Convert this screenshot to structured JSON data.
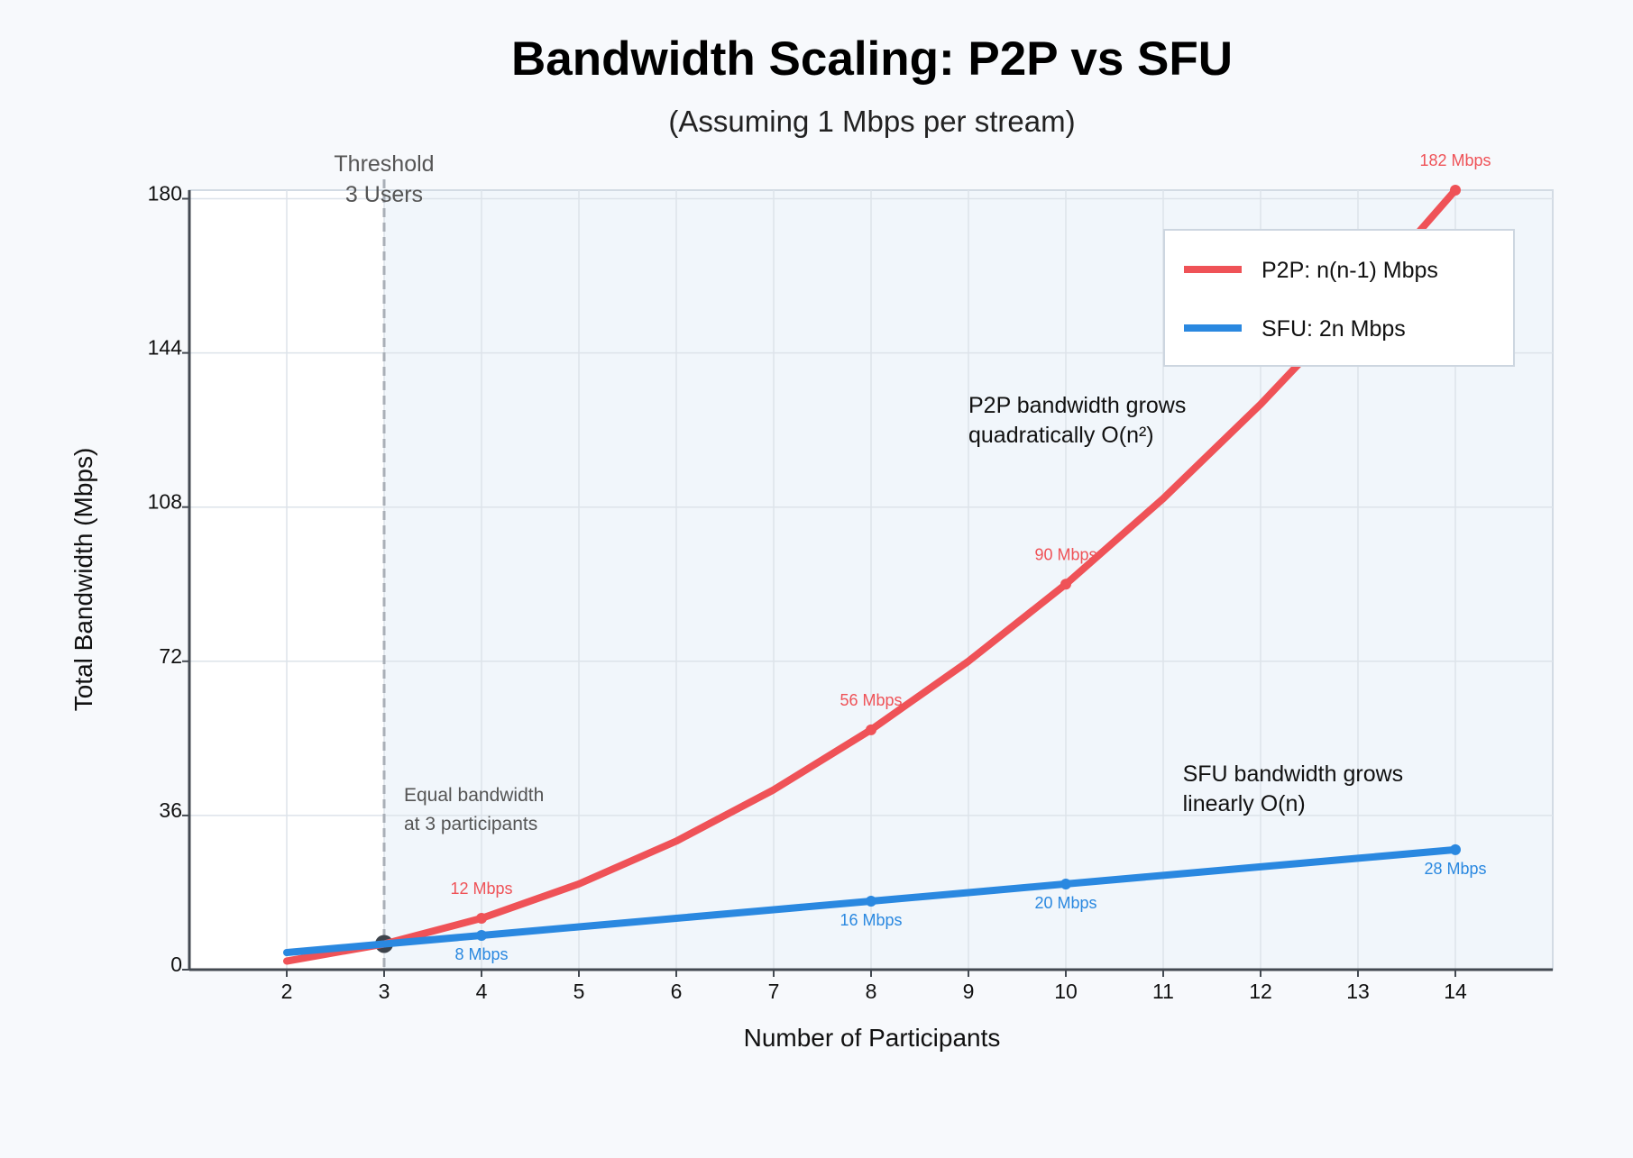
{
  "chart_data": {
    "type": "line",
    "title": "Bandwidth Scaling: P2P vs SFU",
    "subtitle": "(Assuming 1 Mbps per stream)",
    "xlabel": "Number of Participants",
    "ylabel": "Total Bandwidth (Mbps)",
    "xlim": [
      1,
      15
    ],
    "ylim": [
      0,
      182
    ],
    "x_ticks": [
      2,
      3,
      4,
      5,
      6,
      7,
      8,
      9,
      10,
      11,
      12,
      13,
      14
    ],
    "y_ticks": [
      0,
      36,
      72,
      108,
      144,
      180
    ],
    "grid": true,
    "legend_position": "top-right",
    "x": [
      2,
      3,
      4,
      5,
      6,
      7,
      8,
      9,
      10,
      11,
      12,
      13,
      14
    ],
    "series": [
      {
        "name": "P2P: n(n-1) Mbps",
        "color": "#ef5257",
        "values": [
          2,
          6,
          12,
          20,
          30,
          42,
          56,
          72,
          90,
          110,
          132,
          156,
          182
        ],
        "markers": [
          {
            "x": 4,
            "y": 12,
            "label": "12 Mbps"
          },
          {
            "x": 8,
            "y": 56,
            "label": "56 Mbps"
          },
          {
            "x": 10,
            "y": 90,
            "label": "90 Mbps"
          },
          {
            "x": 14,
            "y": 182,
            "label": "182 Mbps"
          }
        ]
      },
      {
        "name": "SFU: 2n Mbps",
        "color": "#2a88e0",
        "values": [
          4,
          6,
          8,
          10,
          12,
          14,
          16,
          18,
          20,
          22,
          24,
          26,
          28
        ],
        "markers": [
          {
            "x": 4,
            "y": 8,
            "label": "8 Mbps"
          },
          {
            "x": 8,
            "y": 16,
            "label": "16 Mbps"
          },
          {
            "x": 10,
            "y": 20,
            "label": "20 Mbps"
          },
          {
            "x": 14,
            "y": 28,
            "label": "28 Mbps"
          }
        ]
      }
    ],
    "threshold": {
      "x": 3,
      "y": 6,
      "label_lines": [
        "Threshold",
        "3 Users"
      ],
      "note_lines": [
        "Equal bandwidth",
        "at 3 participants"
      ]
    },
    "annotations": [
      {
        "lines": [
          "P2P bandwidth grows",
          "quadratically O(n²)"
        ],
        "x": 9,
        "y": 130
      },
      {
        "lines": [
          "SFU bandwidth grows",
          "linearly O(n)"
        ],
        "x": 11.2,
        "y": 44
      }
    ],
    "colors": {
      "plot_bg": "#f1f6fb",
      "grid": "#dde3ea",
      "axis": "#444a52",
      "threshold_line": "#a9afb7",
      "threshold_marker": "#3d434b"
    }
  }
}
